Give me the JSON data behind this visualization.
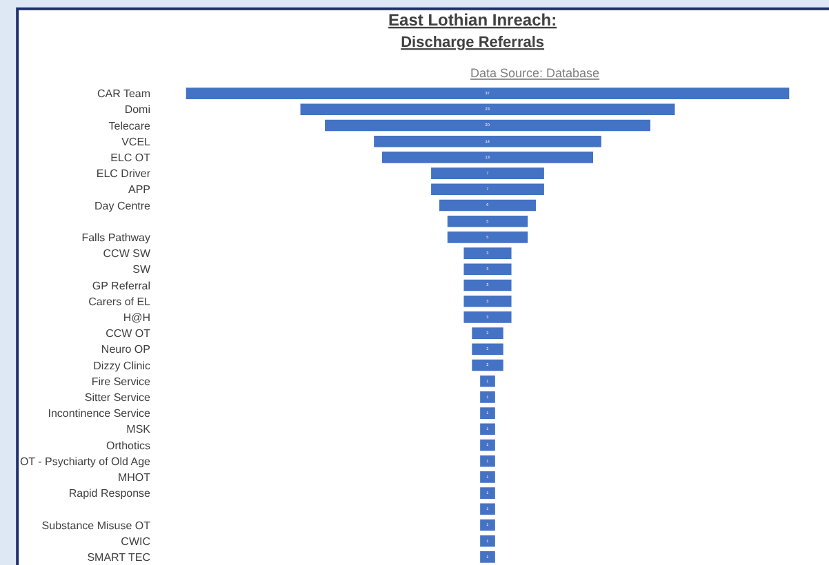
{
  "chart_data": {
    "type": "other",
    "title": "East Lothian Inreach:",
    "subtitle": "Discharge Referrals",
    "annotations": [
      "Data Source: Database"
    ],
    "categories": [
      "CAR Team",
      "Domi",
      "Telecare",
      "VCEL",
      "ELC OT",
      "ELC Driver",
      "APP",
      "Day Centre",
      null,
      "Falls Pathway",
      "CCW SW",
      "SW",
      "GP Referral",
      "Carers of EL",
      "H@H",
      "CCW OT",
      "Neuro OP",
      "Dizzy Clinic",
      "Fire Service",
      "Sitter Service",
      "Incontinence Service",
      "MSK",
      "Orthotics",
      "OT - Psychiarty of Old Age",
      "MHOT",
      "Rapid Response",
      null,
      "Substance Misuse OT",
      "CWIC",
      "SMART TEC"
    ],
    "values": [
      37,
      23,
      20,
      14,
      13,
      7,
      7,
      6,
      5,
      5,
      3,
      3,
      3,
      3,
      3,
      2,
      2,
      2,
      1,
      1,
      1,
      1,
      1,
      1,
      1,
      1,
      1,
      1,
      1,
      1
    ],
    "color": "#4472c4",
    "data_labels": true
  }
}
